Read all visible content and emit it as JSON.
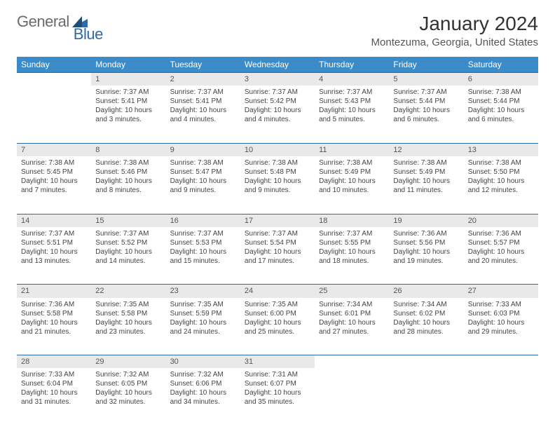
{
  "brand": {
    "part1": "General",
    "part2": "Blue"
  },
  "title": "January 2024",
  "location": "Montezuma, Georgia, United States",
  "colors": {
    "header_bg": "#3b8bc9",
    "border": "#2f6aa8",
    "daynum_bg": "#e9e9e9",
    "text": "#333333"
  },
  "weekdays": [
    "Sunday",
    "Monday",
    "Tuesday",
    "Wednesday",
    "Thursday",
    "Friday",
    "Saturday"
  ],
  "weeks": [
    [
      {
        "day": "",
        "lines": []
      },
      {
        "day": "1",
        "lines": [
          "Sunrise: 7:37 AM",
          "Sunset: 5:41 PM",
          "Daylight: 10 hours",
          "and 3 minutes."
        ]
      },
      {
        "day": "2",
        "lines": [
          "Sunrise: 7:37 AM",
          "Sunset: 5:41 PM",
          "Daylight: 10 hours",
          "and 4 minutes."
        ]
      },
      {
        "day": "3",
        "lines": [
          "Sunrise: 7:37 AM",
          "Sunset: 5:42 PM",
          "Daylight: 10 hours",
          "and 4 minutes."
        ]
      },
      {
        "day": "4",
        "lines": [
          "Sunrise: 7:37 AM",
          "Sunset: 5:43 PM",
          "Daylight: 10 hours",
          "and 5 minutes."
        ]
      },
      {
        "day": "5",
        "lines": [
          "Sunrise: 7:37 AM",
          "Sunset: 5:44 PM",
          "Daylight: 10 hours",
          "and 6 minutes."
        ]
      },
      {
        "day": "6",
        "lines": [
          "Sunrise: 7:38 AM",
          "Sunset: 5:44 PM",
          "Daylight: 10 hours",
          "and 6 minutes."
        ]
      }
    ],
    [
      {
        "day": "7",
        "lines": [
          "Sunrise: 7:38 AM",
          "Sunset: 5:45 PM",
          "Daylight: 10 hours",
          "and 7 minutes."
        ]
      },
      {
        "day": "8",
        "lines": [
          "Sunrise: 7:38 AM",
          "Sunset: 5:46 PM",
          "Daylight: 10 hours",
          "and 8 minutes."
        ]
      },
      {
        "day": "9",
        "lines": [
          "Sunrise: 7:38 AM",
          "Sunset: 5:47 PM",
          "Daylight: 10 hours",
          "and 9 minutes."
        ]
      },
      {
        "day": "10",
        "lines": [
          "Sunrise: 7:38 AM",
          "Sunset: 5:48 PM",
          "Daylight: 10 hours",
          "and 9 minutes."
        ]
      },
      {
        "day": "11",
        "lines": [
          "Sunrise: 7:38 AM",
          "Sunset: 5:49 PM",
          "Daylight: 10 hours",
          "and 10 minutes."
        ]
      },
      {
        "day": "12",
        "lines": [
          "Sunrise: 7:38 AM",
          "Sunset: 5:49 PM",
          "Daylight: 10 hours",
          "and 11 minutes."
        ]
      },
      {
        "day": "13",
        "lines": [
          "Sunrise: 7:38 AM",
          "Sunset: 5:50 PM",
          "Daylight: 10 hours",
          "and 12 minutes."
        ]
      }
    ],
    [
      {
        "day": "14",
        "lines": [
          "Sunrise: 7:37 AM",
          "Sunset: 5:51 PM",
          "Daylight: 10 hours",
          "and 13 minutes."
        ]
      },
      {
        "day": "15",
        "lines": [
          "Sunrise: 7:37 AM",
          "Sunset: 5:52 PM",
          "Daylight: 10 hours",
          "and 14 minutes."
        ]
      },
      {
        "day": "16",
        "lines": [
          "Sunrise: 7:37 AM",
          "Sunset: 5:53 PM",
          "Daylight: 10 hours",
          "and 15 minutes."
        ]
      },
      {
        "day": "17",
        "lines": [
          "Sunrise: 7:37 AM",
          "Sunset: 5:54 PM",
          "Daylight: 10 hours",
          "and 17 minutes."
        ]
      },
      {
        "day": "18",
        "lines": [
          "Sunrise: 7:37 AM",
          "Sunset: 5:55 PM",
          "Daylight: 10 hours",
          "and 18 minutes."
        ]
      },
      {
        "day": "19",
        "lines": [
          "Sunrise: 7:36 AM",
          "Sunset: 5:56 PM",
          "Daylight: 10 hours",
          "and 19 minutes."
        ]
      },
      {
        "day": "20",
        "lines": [
          "Sunrise: 7:36 AM",
          "Sunset: 5:57 PM",
          "Daylight: 10 hours",
          "and 20 minutes."
        ]
      }
    ],
    [
      {
        "day": "21",
        "lines": [
          "Sunrise: 7:36 AM",
          "Sunset: 5:58 PM",
          "Daylight: 10 hours",
          "and 21 minutes."
        ]
      },
      {
        "day": "22",
        "lines": [
          "Sunrise: 7:35 AM",
          "Sunset: 5:58 PM",
          "Daylight: 10 hours",
          "and 23 minutes."
        ]
      },
      {
        "day": "23",
        "lines": [
          "Sunrise: 7:35 AM",
          "Sunset: 5:59 PM",
          "Daylight: 10 hours",
          "and 24 minutes."
        ]
      },
      {
        "day": "24",
        "lines": [
          "Sunrise: 7:35 AM",
          "Sunset: 6:00 PM",
          "Daylight: 10 hours",
          "and 25 minutes."
        ]
      },
      {
        "day": "25",
        "lines": [
          "Sunrise: 7:34 AM",
          "Sunset: 6:01 PM",
          "Daylight: 10 hours",
          "and 27 minutes."
        ]
      },
      {
        "day": "26",
        "lines": [
          "Sunrise: 7:34 AM",
          "Sunset: 6:02 PM",
          "Daylight: 10 hours",
          "and 28 minutes."
        ]
      },
      {
        "day": "27",
        "lines": [
          "Sunrise: 7:33 AM",
          "Sunset: 6:03 PM",
          "Daylight: 10 hours",
          "and 29 minutes."
        ]
      }
    ],
    [
      {
        "day": "28",
        "lines": [
          "Sunrise: 7:33 AM",
          "Sunset: 6:04 PM",
          "Daylight: 10 hours",
          "and 31 minutes."
        ]
      },
      {
        "day": "29",
        "lines": [
          "Sunrise: 7:32 AM",
          "Sunset: 6:05 PM",
          "Daylight: 10 hours",
          "and 32 minutes."
        ]
      },
      {
        "day": "30",
        "lines": [
          "Sunrise: 7:32 AM",
          "Sunset: 6:06 PM",
          "Daylight: 10 hours",
          "and 34 minutes."
        ]
      },
      {
        "day": "31",
        "lines": [
          "Sunrise: 7:31 AM",
          "Sunset: 6:07 PM",
          "Daylight: 10 hours",
          "and 35 minutes."
        ]
      },
      {
        "day": "",
        "lines": []
      },
      {
        "day": "",
        "lines": []
      },
      {
        "day": "",
        "lines": []
      }
    ]
  ]
}
